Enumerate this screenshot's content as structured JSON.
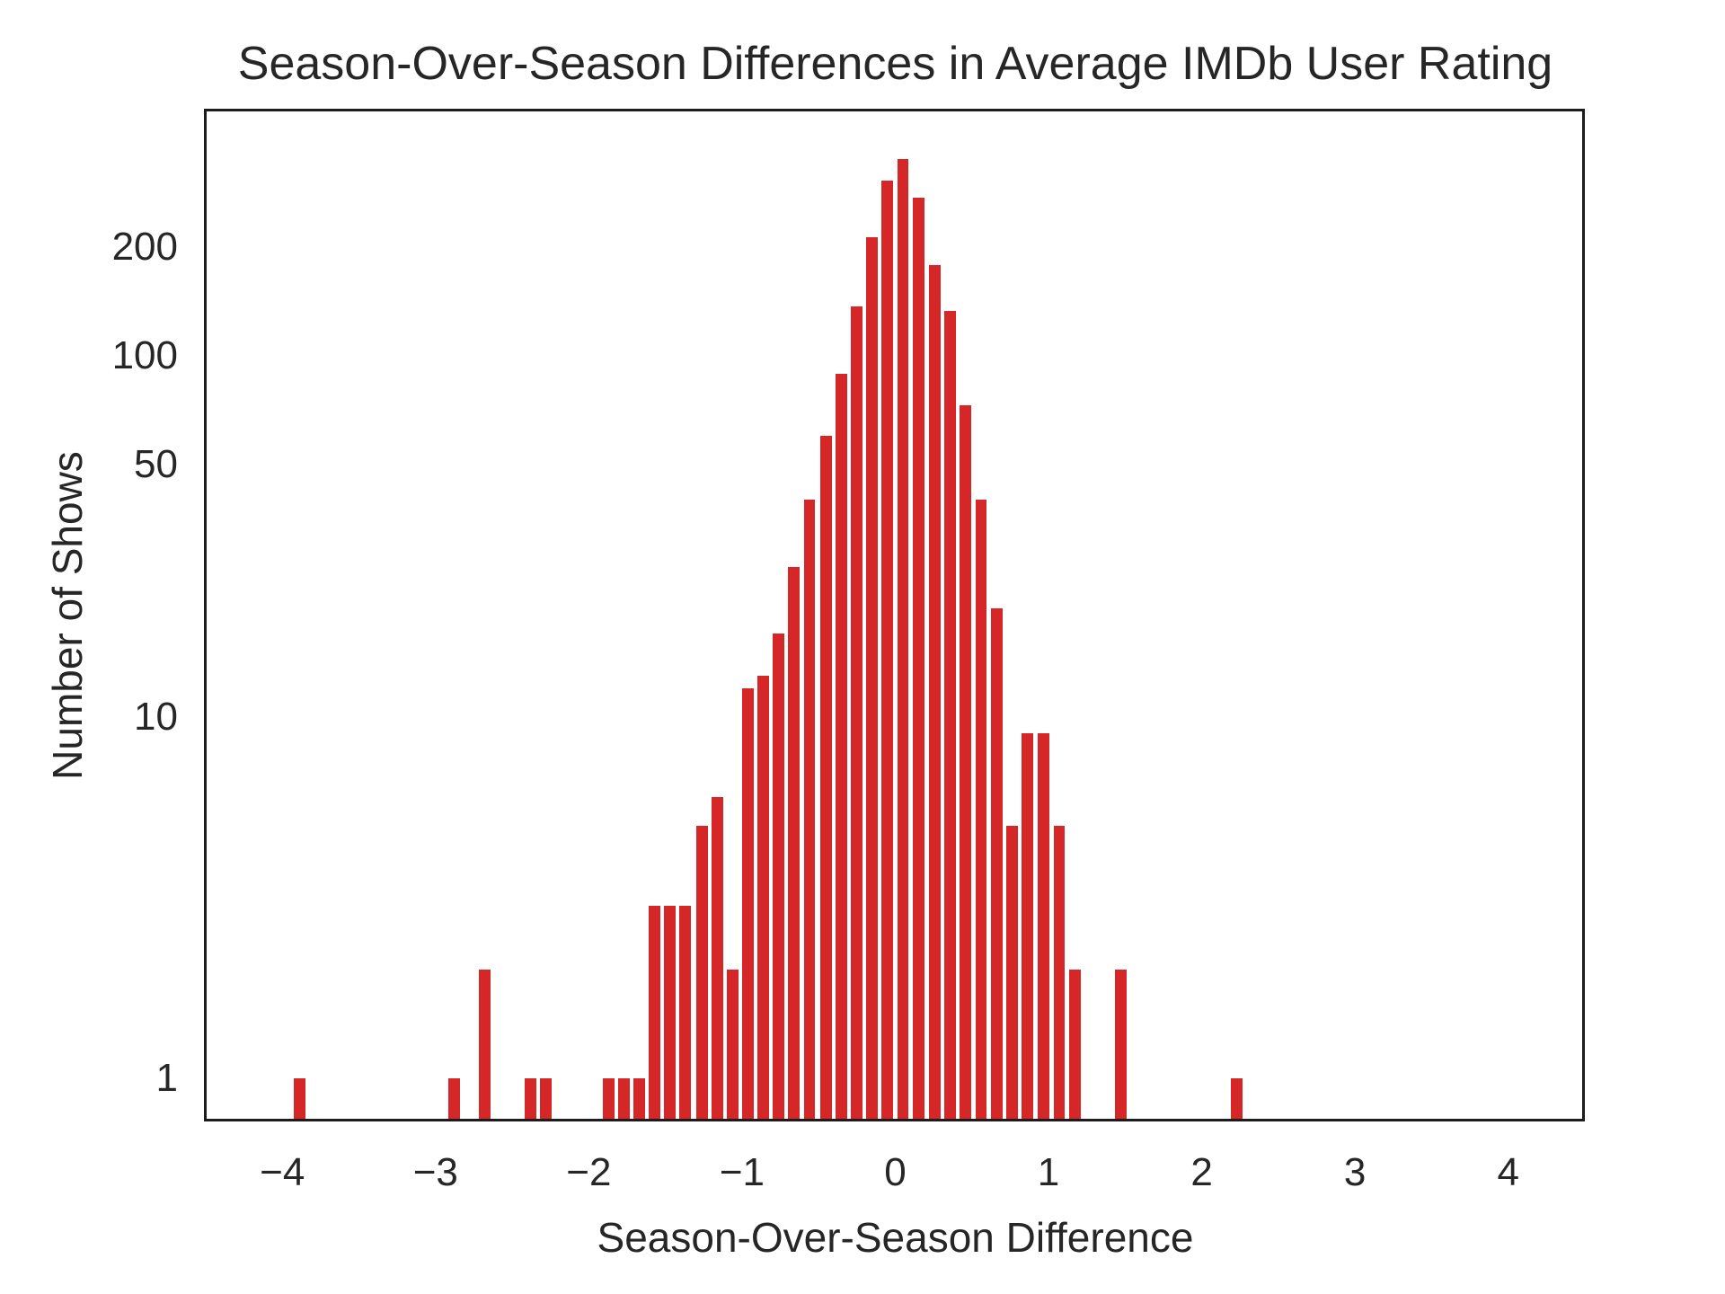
{
  "chart_data": {
    "type": "bar",
    "title": "Season-Over-Season Differences in Average IMDb User Rating",
    "xlabel": "Season-Over-Season Difference",
    "ylabel": "Number of Shows",
    "bar_color": "#d62728",
    "background_color": "#ffffff",
    "spine_color": "#1c1c1c",
    "grid": "off",
    "legend": "none",
    "bin_width": 0.1,
    "x_axis": {
      "scale": "linear",
      "min": -4.5,
      "max": 4.5,
      "ticks": [
        {
          "label": "−4",
          "value": -4
        },
        {
          "label": "−3",
          "value": -3
        },
        {
          "label": "−2",
          "value": -2
        },
        {
          "label": "−1",
          "value": -1
        },
        {
          "label": "0",
          "value": 0
        },
        {
          "label": "1",
          "value": 1
        },
        {
          "label": "2",
          "value": 2
        },
        {
          "label": "3",
          "value": 3
        },
        {
          "label": "4",
          "value": 4
        }
      ]
    },
    "y_axis": {
      "scale": "log",
      "min": 0.76,
      "max": 478,
      "ticks": [
        {
          "label": "200",
          "value": 200
        },
        {
          "label": "100",
          "value": 100
        },
        {
          "label": "50",
          "value": 50
        },
        {
          "label": "10",
          "value": 10
        },
        {
          "label": "1",
          "value": 1
        }
      ]
    },
    "bins": [
      {
        "x": -3.89,
        "count": 1
      },
      {
        "x": -2.88,
        "count": 1
      },
      {
        "x": -2.68,
        "count": 2
      },
      {
        "x": -2.38,
        "count": 1
      },
      {
        "x": -2.28,
        "count": 1
      },
      {
        "x": -1.87,
        "count": 1
      },
      {
        "x": -1.77,
        "count": 1
      },
      {
        "x": -1.67,
        "count": 1
      },
      {
        "x": -1.57,
        "count": 3
      },
      {
        "x": -1.47,
        "count": 3
      },
      {
        "x": -1.37,
        "count": 3
      },
      {
        "x": -1.26,
        "count": 5
      },
      {
        "x": -1.16,
        "count": 6
      },
      {
        "x": -1.06,
        "count": 2
      },
      {
        "x": -0.96,
        "count": 12
      },
      {
        "x": -0.86,
        "count": 13
      },
      {
        "x": -0.76,
        "count": 17
      },
      {
        "x": -0.66,
        "count": 26
      },
      {
        "x": -0.56,
        "count": 40
      },
      {
        "x": -0.45,
        "count": 60
      },
      {
        "x": -0.35,
        "count": 89
      },
      {
        "x": -0.25,
        "count": 137
      },
      {
        "x": -0.15,
        "count": 213
      },
      {
        "x": -0.05,
        "count": 305
      },
      {
        "x": 0.05,
        "count": 350
      },
      {
        "x": 0.15,
        "count": 275
      },
      {
        "x": 0.26,
        "count": 178
      },
      {
        "x": 0.36,
        "count": 133
      },
      {
        "x": 0.46,
        "count": 73
      },
      {
        "x": 0.56,
        "count": 40
      },
      {
        "x": 0.66,
        "count": 20
      },
      {
        "x": 0.76,
        "count": 5
      },
      {
        "x": 0.86,
        "count": 9
      },
      {
        "x": 0.97,
        "count": 9
      },
      {
        "x": 1.07,
        "count": 5
      },
      {
        "x": 1.17,
        "count": 2
      },
      {
        "x": 1.47,
        "count": 2
      },
      {
        "x": 2.23,
        "count": 1
      }
    ]
  }
}
